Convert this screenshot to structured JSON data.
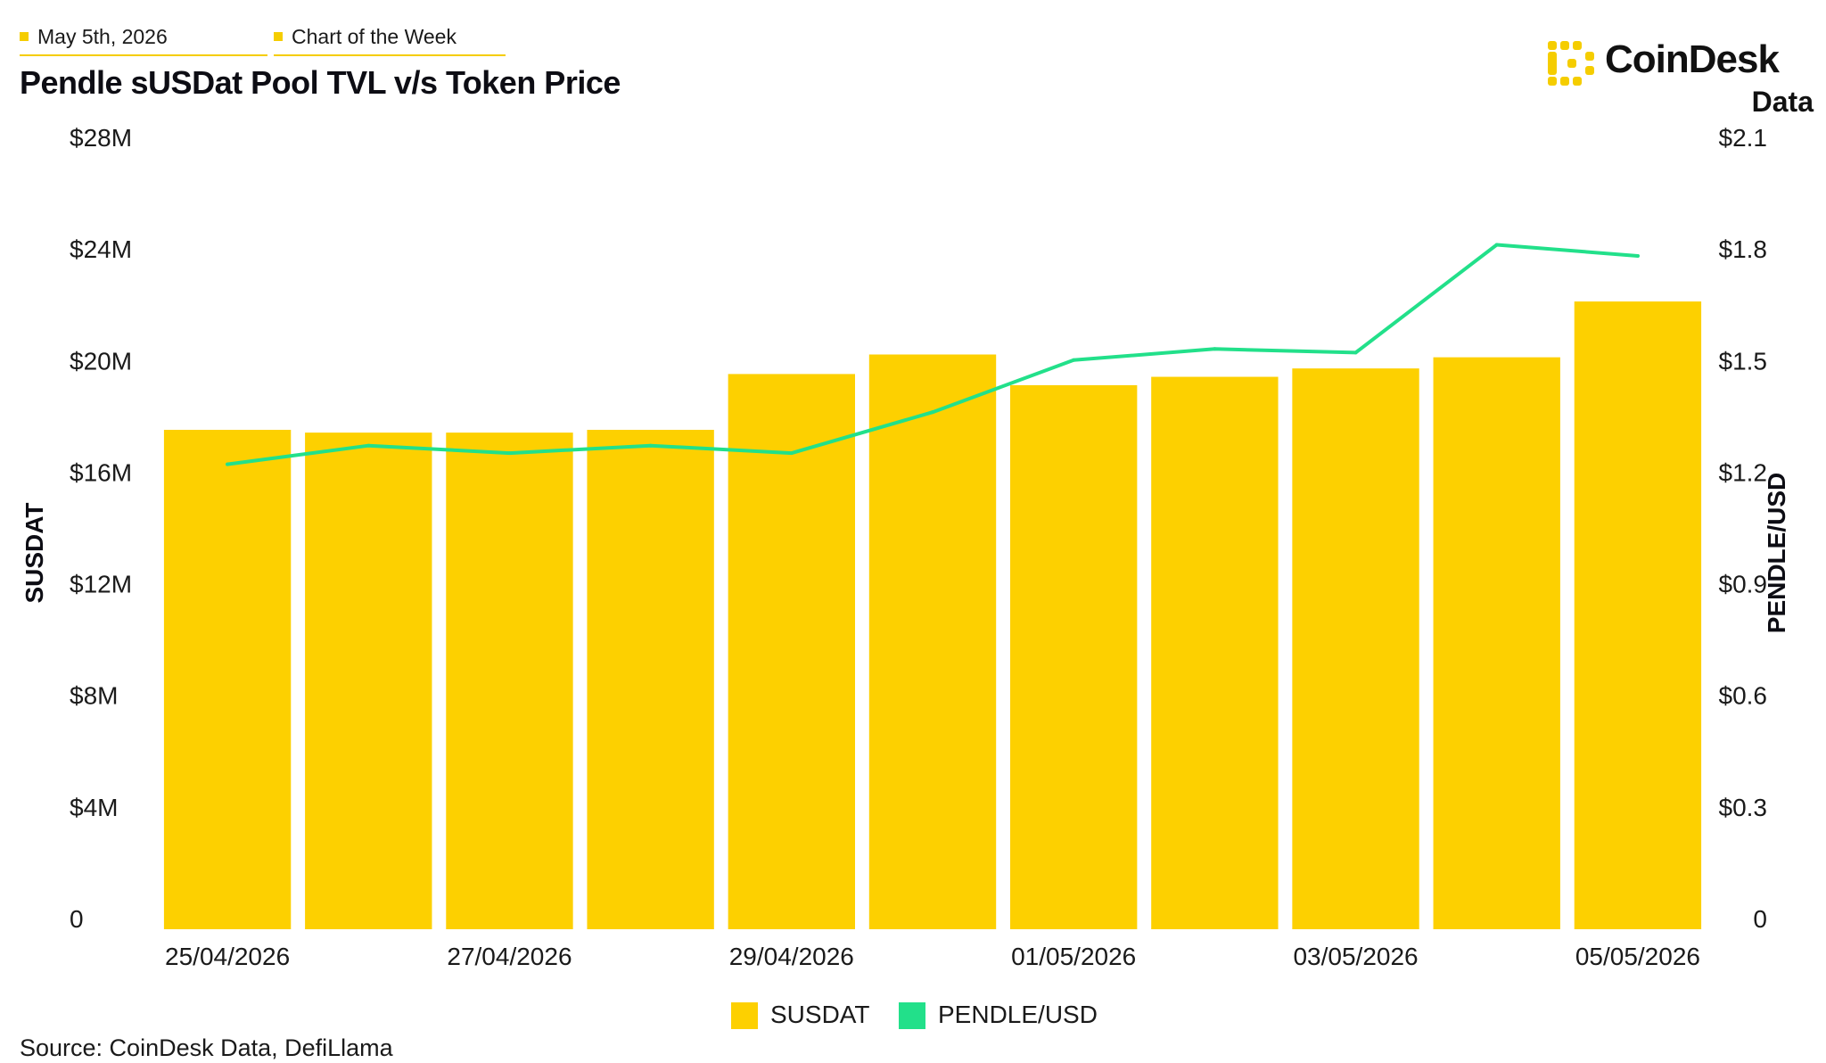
{
  "header": {
    "date_tag": "May 5th, 2026",
    "series_tag": "Chart of the Week",
    "title": "Pendle sUSDat Pool TVL v/s Token Price"
  },
  "brand": {
    "name": "CoinDesk",
    "sub": "Data",
    "icon": "coindesk-logo-icon",
    "accent": "#f5cd00"
  },
  "source": "Source: CoinDesk Data, DefiLlama",
  "chart_data": {
    "type": "bar",
    "title": "Pendle sUSDat Pool TVL v/s Token Price",
    "x": [
      "25/04/2026",
      "26/04/2026",
      "27/04/2026",
      "28/04/2026",
      "29/04/2026",
      "30/04/2026",
      "01/05/2026",
      "02/05/2026",
      "03/05/2026",
      "04/05/2026",
      "05/05/2026"
    ],
    "x_tick_labels": [
      "25/04/2026",
      "",
      "27/04/2026",
      "",
      "29/04/2026",
      "",
      "01/05/2026",
      "",
      "03/05/2026",
      "",
      "05/05/2026"
    ],
    "series": [
      {
        "name": "SUSDAT",
        "type": "bar",
        "axis": "left",
        "color": "#fdd000",
        "values": [
          17.9,
          17.8,
          17.8,
          17.9,
          19.9,
          20.6,
          19.5,
          19.8,
          20.1,
          20.5,
          22.5
        ]
      },
      {
        "name": "PENDLE/USD",
        "type": "line",
        "axis": "right",
        "color": "#22e08a",
        "values": [
          1.25,
          1.3,
          1.28,
          1.3,
          1.28,
          1.39,
          1.53,
          1.56,
          1.55,
          1.84,
          1.81
        ]
      }
    ],
    "y_left": {
      "label": "SUSDAT",
      "range": [
        0,
        28
      ],
      "ticks": [
        0,
        4,
        8,
        12,
        16,
        20,
        24,
        28
      ],
      "tick_labels": [
        "0",
        "$4M",
        "$8M",
        "$12M",
        "$16M",
        "$20M",
        "$24M",
        "$28M"
      ]
    },
    "y_right": {
      "label": "PENDLE/USD",
      "range": [
        0,
        2.1
      ],
      "ticks": [
        0,
        0.3,
        0.6,
        0.9,
        1.2,
        1.5,
        1.8,
        2.1
      ],
      "tick_labels": [
        "0",
        "$0.3",
        "$0.6",
        "$0.9",
        "$1.2",
        "$1.5",
        "$1.8",
        "$2.1"
      ]
    },
    "grid": false,
    "legend": "bottom-center"
  }
}
